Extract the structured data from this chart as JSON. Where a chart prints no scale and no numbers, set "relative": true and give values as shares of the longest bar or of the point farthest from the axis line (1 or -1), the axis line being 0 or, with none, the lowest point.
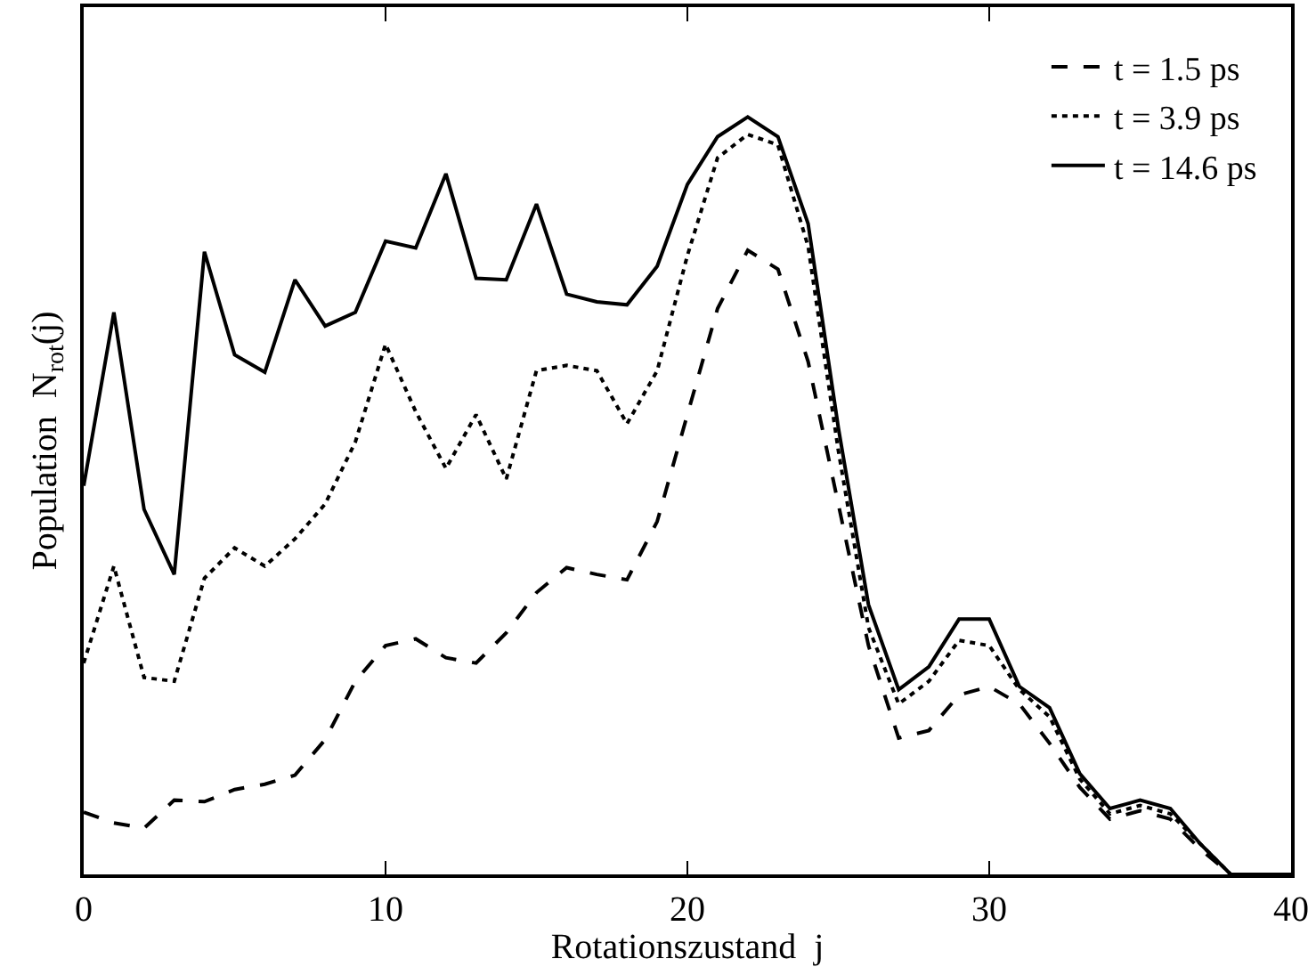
{
  "chart_data": {
    "type": "line",
    "relative": true,
    "xlabel": "Rotationszustand  j",
    "ylabel": "Population  N$_{rot}$(j)",
    "x": [
      0,
      1,
      2,
      3,
      4,
      5,
      6,
      7,
      8,
      9,
      10,
      11,
      12,
      13,
      14,
      15,
      16,
      17,
      18,
      19,
      20,
      21,
      22,
      23,
      24,
      25,
      26,
      27,
      28,
      29,
      30,
      31,
      32,
      33,
      34,
      35,
      36,
      37,
      38,
      39,
      40
    ],
    "xlim": [
      0,
      40
    ],
    "xticks": [
      0,
      10,
      20,
      30,
      40
    ],
    "legend": "top right",
    "marker": "none",
    "series": [
      {
        "name": "t = 1.5 ps",
        "color": "#000000",
        "line_style": "dashed",
        "values": [
          0.082,
          0.068,
          0.061,
          0.098,
          0.096,
          0.112,
          0.119,
          0.131,
          0.178,
          0.255,
          0.302,
          0.311,
          0.286,
          0.279,
          0.319,
          0.372,
          0.405,
          0.396,
          0.389,
          0.466,
          0.607,
          0.747,
          0.824,
          0.799,
          0.677,
          0.489,
          0.302,
          0.18,
          0.19,
          0.237,
          0.248,
          0.225,
          0.173,
          0.115,
          0.073,
          0.084,
          0.073,
          0.033,
          0,
          0,
          0
        ]
      },
      {
        "name": "t = 3.9 ps",
        "color": "#000000",
        "line_style": "dotted",
        "values": [
          0.279,
          0.407,
          0.26,
          0.255,
          0.391,
          0.431,
          0.407,
          0.443,
          0.489,
          0.571,
          0.7,
          0.611,
          0.536,
          0.607,
          0.522,
          0.665,
          0.672,
          0.665,
          0.595,
          0.665,
          0.817,
          0.946,
          0.977,
          0.963,
          0.829,
          0.56,
          0.326,
          0.225,
          0.255,
          0.309,
          0.302,
          0.244,
          0.208,
          0.126,
          0.08,
          0.091,
          0.08,
          0.04,
          0,
          0,
          0
        ]
      },
      {
        "name": "t = 14.6 ps",
        "color": "#000000",
        "line_style": "solid",
        "values": [
          0.513,
          0.742,
          0.482,
          0.396,
          0.822,
          0.686,
          0.663,
          0.785,
          0.724,
          0.742,
          0.836,
          0.827,
          0.925,
          0.787,
          0.785,
          0.885,
          0.766,
          0.756,
          0.752,
          0.803,
          0.911,
          0.974,
          1,
          0.974,
          0.859,
          0.59,
          0.356,
          0.244,
          0.274,
          0.337,
          0.337,
          0.248,
          0.22,
          0.133,
          0.087,
          0.098,
          0.087,
          0.04,
          0,
          0,
          0
        ]
      }
    ]
  }
}
